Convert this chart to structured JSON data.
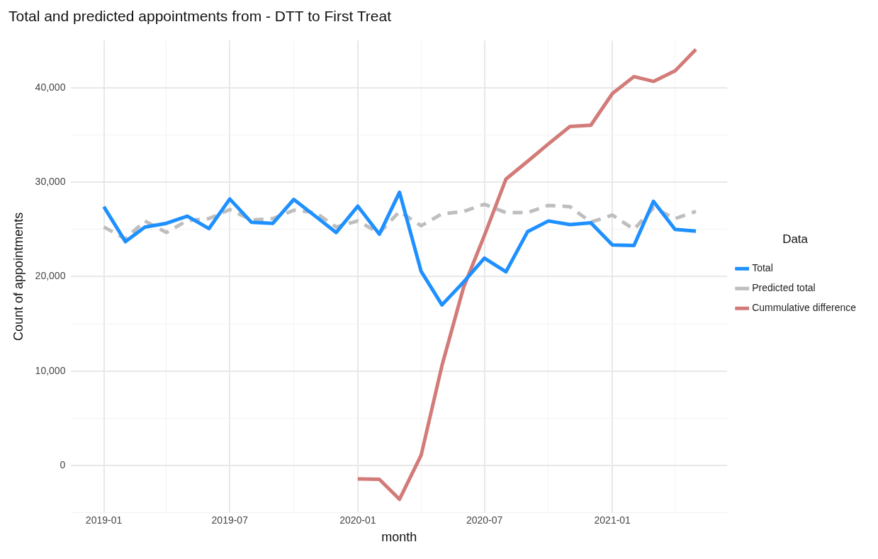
{
  "chart_data": {
    "type": "line",
    "title": "Total and predicted appointments from - DTT to First Treat",
    "xlabel": "month",
    "ylabel": "Count of appointments",
    "legend_title": "Data",
    "legend": "right",
    "grid": true,
    "marker": "none",
    "x": [
      "2019-01",
      "2019-02",
      "2019-03",
      "2019-04",
      "2019-05",
      "2019-06",
      "2019-07",
      "2019-08",
      "2019-09",
      "2019-10",
      "2019-11",
      "2019-12",
      "2020-01",
      "2020-02",
      "2020-03",
      "2020-04",
      "2020-05",
      "2020-06",
      "2020-07",
      "2020-08",
      "2020-09",
      "2020-10",
      "2020-11",
      "2020-12",
      "2021-01",
      "2021-02",
      "2021-03",
      "2021-04",
      "2021-05"
    ],
    "xlim": [
      "2018-11-15",
      "2021-06-15"
    ],
    "xticks": [
      "2019-01",
      {
        "value": "2019-04",
        "label": null
      },
      "2019-07",
      {
        "value": "2019-10",
        "label": null
      },
      "2020-01",
      {
        "value": "2020-04",
        "label": null
      },
      "2020-07",
      {
        "value": "2020-10",
        "label": null
      },
      "2021-01",
      {
        "value": "2021-04",
        "label": null
      }
    ],
    "ylim": [
      -5000,
      45000
    ],
    "yticks": [
      {
        "value": -5000,
        "label": null
      },
      {
        "value": 0,
        "label": "0"
      },
      {
        "value": 5000,
        "label": null
      },
      {
        "value": 10000,
        "label": "10,000"
      },
      {
        "value": 15000,
        "label": null
      },
      {
        "value": 20000,
        "label": "20,000"
      },
      {
        "value": 25000,
        "label": null
      },
      {
        "value": 30000,
        "label": "30,000"
      },
      {
        "value": 35000,
        "label": null
      },
      {
        "value": 40000,
        "label": "40,000"
      }
    ],
    "series": [
      {
        "name": "Total",
        "color": "#1e90ff",
        "line_style": "solid",
        "values": [
          27400,
          23700,
          25250,
          25640,
          26400,
          25080,
          28220,
          25760,
          25640,
          28170,
          26400,
          24670,
          27460,
          24490,
          28930,
          20560,
          17000,
          19420,
          21950,
          20510,
          24750,
          25890,
          25510,
          25690,
          23350,
          23300,
          27970,
          25000,
          24820
        ]
      },
      {
        "name": "Predicted total",
        "color": "#bebebe",
        "line_style": "dashed",
        "values": [
          25250,
          24000,
          25890,
          24670,
          25940,
          26140,
          27100,
          26000,
          26140,
          27030,
          26780,
          25250,
          25890,
          24620,
          26900,
          25380,
          26650,
          26900,
          27660,
          26780,
          26780,
          27540,
          27410,
          25760,
          26520,
          25000,
          27280,
          26140,
          26900
        ]
      },
      {
        "name": "Cummulative difference",
        "color": "#d27b78",
        "line_style": "solid",
        "x": [
          "2020-01",
          "2020-02",
          "2020-03",
          "2020-04",
          "2020-05",
          "2020-06",
          "2020-07",
          "2020-08",
          "2020-09",
          "2020-10",
          "2020-11",
          "2020-12",
          "2021-01",
          "2021-02",
          "2021-03",
          "2021-04",
          "2021-05"
        ],
        "values": [
          -1420,
          -1470,
          -3580,
          1070,
          10580,
          18850,
          24350,
          30330,
          32200,
          34050,
          35900,
          36030,
          39390,
          41180,
          40670,
          41780,
          44060
        ]
      }
    ]
  }
}
